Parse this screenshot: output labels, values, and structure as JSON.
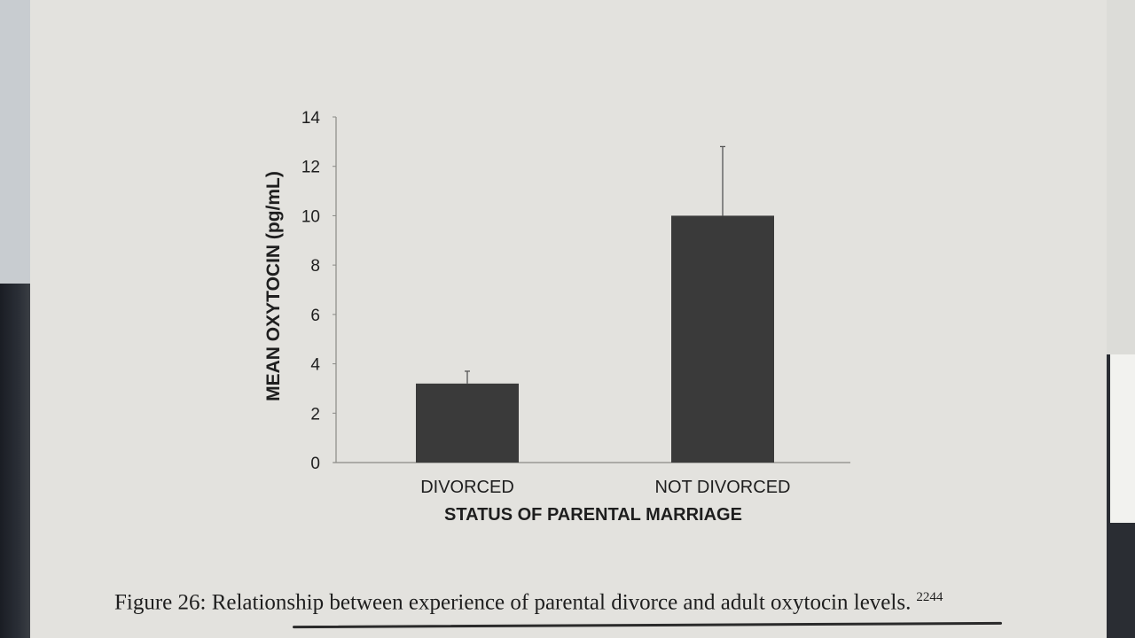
{
  "chart_data": {
    "type": "bar",
    "title": "",
    "xlabel": "STATUS OF PARENTAL MARRIAGE",
    "ylabel": "MEAN OXYTOCIN (pg/mL)",
    "categories": [
      "DIVORCED",
      "NOT DIVORCED"
    ],
    "values": [
      3.2,
      10.0
    ],
    "error_upper": [
      3.7,
      12.8
    ],
    "ylim": [
      0,
      14
    ],
    "yticks": [
      "0",
      "2",
      "4",
      "6",
      "8",
      "10",
      "12",
      "14"
    ],
    "grid": false,
    "bar_color": "#3a3a3a"
  },
  "caption": {
    "text": "Figure 26: Relationship between experience of parental divorce and adult oxytocin levels.",
    "ref": "2244"
  }
}
